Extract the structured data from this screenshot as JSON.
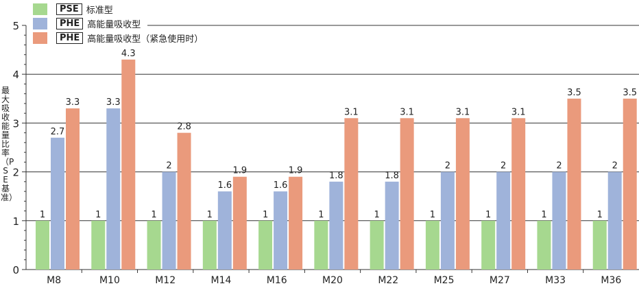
{
  "chart_data": {
    "type": "bar",
    "title": "",
    "ylabel": "最大吸收能量比率（PSE基准）",
    "xlabel": "",
    "ylim": [
      0,
      5
    ],
    "yticks": [
      0,
      1,
      2,
      3,
      4,
      5
    ],
    "grid": true,
    "legend_placement": "top-left",
    "categories": [
      "M8",
      "M10",
      "M12",
      "M14",
      "M16",
      "M20",
      "M22",
      "M25",
      "M27",
      "M33",
      "M36"
    ],
    "series": [
      {
        "code": "PSE",
        "name": "标准型",
        "color": "#a6d88f",
        "values": [
          1,
          1,
          1,
          1,
          1,
          1,
          1,
          1,
          1,
          1,
          1
        ]
      },
      {
        "code": "PHE",
        "name": "高能量吸收型",
        "color": "#9fb3da",
        "values": [
          2.7,
          3.3,
          2,
          1.6,
          1.6,
          1.8,
          1.8,
          2,
          2,
          2,
          2
        ]
      },
      {
        "code": "PHE",
        "name": "高能量吸收型（紧急使用时）",
        "color": "#ea9a7c",
        "values": [
          3.3,
          4.3,
          2.8,
          1.9,
          1.9,
          3.1,
          3.1,
          3.1,
          3.1,
          3.5,
          3.5
        ]
      }
    ]
  }
}
